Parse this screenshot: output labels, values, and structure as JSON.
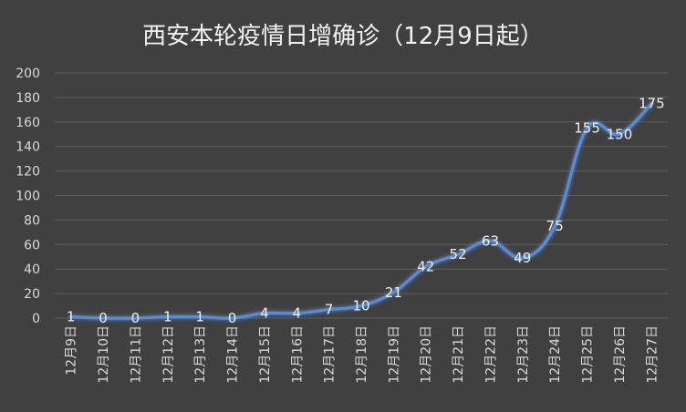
{
  "chart_data": {
    "type": "line",
    "title": "西安本轮疫情日增确诊（12月9日起）",
    "xlabel": "",
    "ylabel": "",
    "categories": [
      "12月9日",
      "12月10日",
      "12月11日",
      "12月12日",
      "12月13日",
      "12月14日",
      "12月15日",
      "12月16日",
      "12月17日",
      "12月18日",
      "12月19日",
      "12月20日",
      "12月21日",
      "12月22日",
      "12月23日",
      "12月24日",
      "12月25日",
      "12月26日",
      "12月27日"
    ],
    "series": [
      {
        "values": [
          1,
          0,
          0,
          1,
          1,
          0,
          4,
          4,
          7,
          10,
          21,
          42,
          52,
          63,
          49,
          75,
          155,
          150,
          175
        ]
      }
    ],
    "ylim": [
      0,
      200
    ],
    "yticks": [
      0,
      20,
      40,
      60,
      80,
      100,
      120,
      140,
      160,
      180,
      200
    ],
    "grid": true,
    "legend": "none",
    "colors": {
      "background": "#404040",
      "line": "#5b8bd6",
      "grid": "#5e5e5e",
      "text": "#d9d9d9"
    }
  }
}
